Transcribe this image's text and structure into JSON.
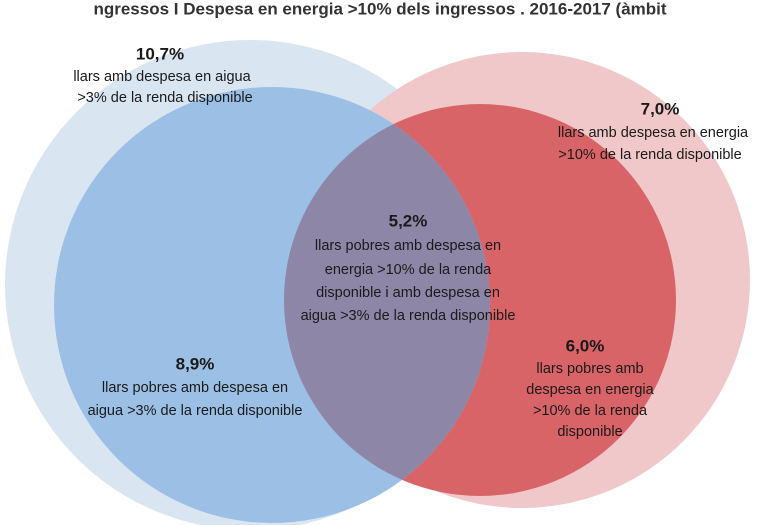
{
  "title": "ngressos I Despesa en energia >10% dels ingressos . 2016-2017 (àmbit",
  "regions": [
    {
      "value": "10,7%",
      "lines": [
        "llars amb despesa en aigua",
        ">3% de la renda disponible"
      ]
    },
    {
      "value": "7,0%",
      "lines": [
        "llars amb despesa en energia",
        ">10% de la renda disponible"
      ]
    },
    {
      "value": "5,2%",
      "lines": [
        "llars pobres amb despesa en",
        "energia >10% de la renda",
        "disponible i amb despesa en",
        "aigua >3% de la renda disponible"
      ]
    },
    {
      "value": "8,9%",
      "lines": [
        "llars pobres amb despesa en",
        "aigua >3% de la renda disponible"
      ]
    },
    {
      "value": "6,0%",
      "lines": [
        "llars pobres amb",
        "despesa en energia",
        ">10% de la renda",
        "disponible"
      ]
    }
  ]
}
